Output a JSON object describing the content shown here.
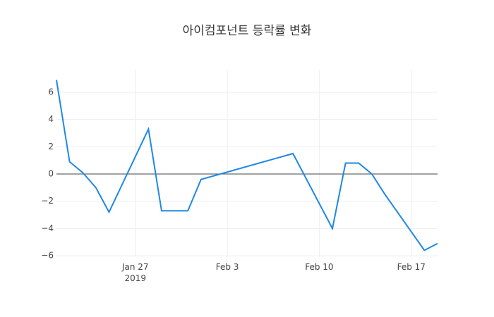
{
  "chart_data": {
    "type": "line",
    "title": "아이컴포넌트 등락률 변화",
    "x": [
      "2019-01-21",
      "2019-01-22",
      "2019-01-23",
      "2019-01-24",
      "2019-01-25",
      "2019-01-28",
      "2019-01-29",
      "2019-01-30",
      "2019-01-31",
      "2019-02-01",
      "2019-02-08",
      "2019-02-11",
      "2019-02-12",
      "2019-02-13",
      "2019-02-14",
      "2019-02-15",
      "2019-02-18",
      "2019-02-19"
    ],
    "series": [
      {
        "color": "#1f88e5",
        "values": [
          6.9,
          0.9,
          0.1,
          -1.0,
          -2.8,
          3.3,
          -2.7,
          -2.7,
          -2.7,
          -0.4,
          1.5,
          -4.0,
          0.8,
          0.8,
          0.0,
          -1.5,
          -5.6,
          -5.1
        ]
      }
    ],
    "xlim": [
      "2019-01-21",
      "2019-02-19"
    ],
    "xticks": [
      {
        "value": "2019-01-27",
        "label": "Jan 27\n2019"
      },
      {
        "value": "2019-02-03",
        "label": "Feb 3"
      },
      {
        "value": "2019-02-10",
        "label": "Feb 10"
      },
      {
        "value": "2019-02-17",
        "label": "Feb 17"
      }
    ],
    "ylim": [
      -6.1,
      7.6
    ],
    "yticks": [
      {
        "value": -6,
        "label": "−6"
      },
      {
        "value": -4,
        "label": "−4"
      },
      {
        "value": -2,
        "label": "−2"
      },
      0,
      2,
      4,
      6
    ],
    "grid": true,
    "zeroline": true
  }
}
